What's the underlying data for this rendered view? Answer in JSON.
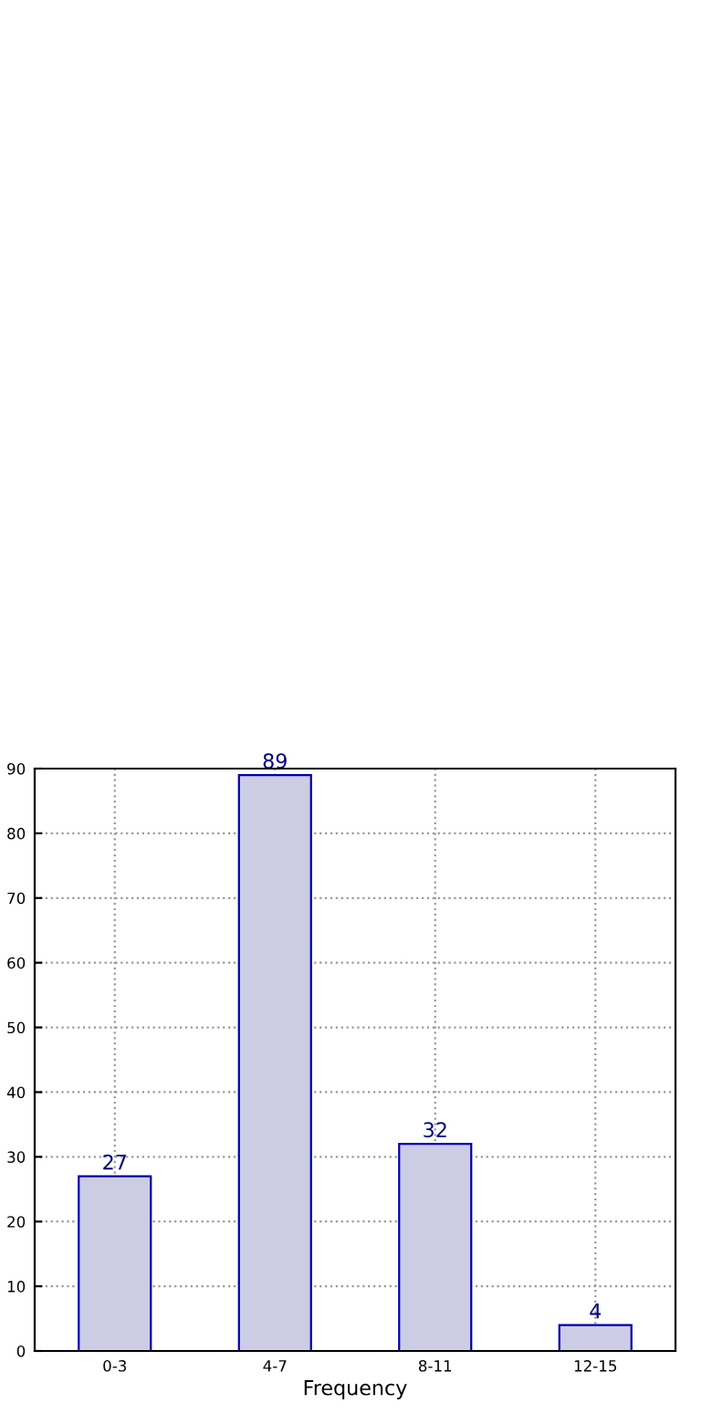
{
  "chart_data": {
    "type": "bar",
    "xlabel": "Frequency",
    "categories": [
      "0-3",
      "4-7",
      "8-11",
      "12-15"
    ],
    "values": [
      27,
      89,
      32,
      4
    ],
    "color": "#ccccE5",
    "ylim": [
      0,
      90
    ],
    "yticks": [
      0,
      10,
      20,
      30,
      40,
      50,
      60,
      70,
      80,
      90
    ],
    "grid": true,
    "data_labels": true
  }
}
